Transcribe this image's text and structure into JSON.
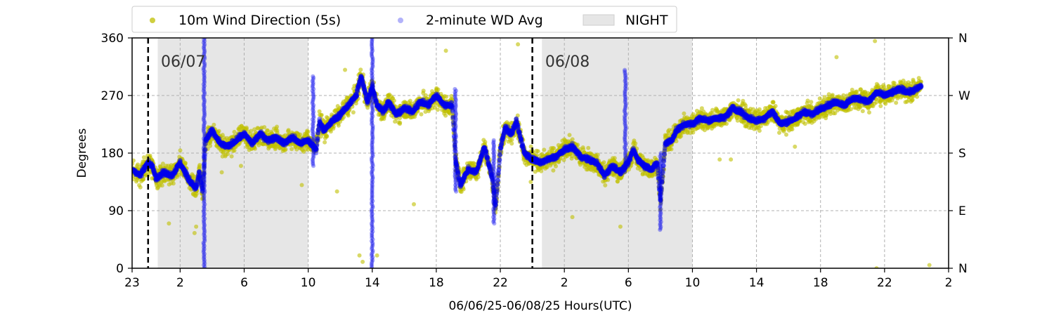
{
  "chart_data": {
    "type": "scatter",
    "xlabel": "06/06/25-06/08/25  Hours(UTC)",
    "ylabel": "Degrees",
    "ylim": [
      0,
      360
    ],
    "x_range_hours": [
      23,
      74
    ],
    "x_ticks": [
      {
        "hour": 23,
        "label": "23"
      },
      {
        "hour": 26,
        "label": "2"
      },
      {
        "hour": 30,
        "label": "6"
      },
      {
        "hour": 34,
        "label": "10"
      },
      {
        "hour": 38,
        "label": "14"
      },
      {
        "hour": 42,
        "label": "18"
      },
      {
        "hour": 46,
        "label": "22"
      },
      {
        "hour": 50,
        "label": "2"
      },
      {
        "hour": 54,
        "label": "6"
      },
      {
        "hour": 58,
        "label": "10"
      },
      {
        "hour": 62,
        "label": "14"
      },
      {
        "hour": 66,
        "label": "18"
      },
      {
        "hour": 70,
        "label": "22"
      },
      {
        "hour": 74,
        "label": "2"
      }
    ],
    "y_ticks": [
      0,
      90,
      180,
      270,
      360
    ],
    "y2_ticks": [
      {
        "value": 0,
        "label": "N"
      },
      {
        "value": 90,
        "label": "E"
      },
      {
        "value": 180,
        "label": "S"
      },
      {
        "value": 270,
        "label": "W"
      },
      {
        "value": 360,
        "label": "N"
      }
    ],
    "grid": true,
    "legend_position": "top-center",
    "night_periods": [
      [
        24.6,
        34.0
      ],
      [
        48.6,
        58.0
      ]
    ],
    "midnight_lines": [
      24.0,
      48.0
    ],
    "date_labels": [
      {
        "hour": 24.8,
        "label": "06/07"
      },
      {
        "hour": 48.8,
        "label": "06/08"
      }
    ],
    "legend": {
      "wd5s": "10m Wind Direction (5s)",
      "wd2m": "2-minute WD Avg",
      "night": "NIGHT"
    },
    "series": [
      {
        "name": "10m Wind Direction (5s)",
        "color": "#bfbf00",
        "spread": 22,
        "outliers": [
          [
            27.0,
            65
          ],
          [
            26.9,
            55
          ],
          [
            25.3,
            70
          ],
          [
            33.6,
            130
          ],
          [
            28.6,
            150
          ],
          [
            35.8,
            120
          ],
          [
            37.2,
            20
          ],
          [
            37.4,
            10
          ],
          [
            38.3,
            20
          ],
          [
            40.6,
            100
          ],
          [
            42.6,
            340
          ],
          [
            47.1,
            350
          ],
          [
            50.5,
            80
          ],
          [
            53.5,
            65
          ],
          [
            59.7,
            170
          ],
          [
            60.4,
            170
          ],
          [
            64.4,
            190
          ],
          [
            67.0,
            330
          ],
          [
            69.4,
            355
          ],
          [
            69.5,
            0
          ],
          [
            72.8,
            5
          ],
          [
            29.8,
            160
          ],
          [
            36.3,
            310
          ],
          [
            47.9,
            135
          ]
        ]
      },
      {
        "name": "2-minute WD Avg",
        "color": "#0000ee",
        "profile": [
          [
            23.0,
            155
          ],
          [
            23.5,
            145
          ],
          [
            24.0,
            165
          ],
          [
            24.3,
            160
          ],
          [
            24.5,
            140
          ],
          [
            25.0,
            150
          ],
          [
            25.5,
            145
          ],
          [
            26.0,
            165
          ],
          [
            26.5,
            140
          ],
          [
            27.0,
            125
          ],
          [
            27.2,
            150
          ],
          [
            27.4,
            120
          ],
          [
            27.6,
            200
          ],
          [
            28.0,
            215
          ],
          [
            28.5,
            195
          ],
          [
            29.0,
            190
          ],
          [
            29.5,
            200
          ],
          [
            30.0,
            210
          ],
          [
            30.5,
            195
          ],
          [
            31.0,
            210
          ],
          [
            31.5,
            200
          ],
          [
            32.0,
            205
          ],
          [
            32.5,
            195
          ],
          [
            33.0,
            205
          ],
          [
            33.5,
            195
          ],
          [
            34.0,
            200
          ],
          [
            34.5,
            185
          ],
          [
            34.7,
            230
          ],
          [
            35.0,
            215
          ],
          [
            35.5,
            230
          ],
          [
            36.0,
            240
          ],
          [
            36.5,
            255
          ],
          [
            37.0,
            270
          ],
          [
            37.3,
            300
          ],
          [
            37.7,
            260
          ],
          [
            38.0,
            285
          ],
          [
            38.3,
            255
          ],
          [
            38.7,
            245
          ],
          [
            39.0,
            260
          ],
          [
            39.5,
            240
          ],
          [
            40.0,
            250
          ],
          [
            40.5,
            245
          ],
          [
            41.0,
            260
          ],
          [
            41.5,
            255
          ],
          [
            42.0,
            270
          ],
          [
            42.5,
            255
          ],
          [
            43.0,
            255
          ],
          [
            43.2,
            170
          ],
          [
            43.5,
            130
          ],
          [
            44.0,
            155
          ],
          [
            44.5,
            150
          ],
          [
            45.0,
            190
          ],
          [
            45.5,
            140
          ],
          [
            45.7,
            95
          ],
          [
            46.0,
            185
          ],
          [
            46.3,
            220
          ],
          [
            46.7,
            210
          ],
          [
            47.0,
            230
          ],
          [
            47.3,
            200
          ],
          [
            47.5,
            180
          ],
          [
            48.0,
            170
          ],
          [
            48.5,
            165
          ],
          [
            49.0,
            170
          ],
          [
            49.5,
            175
          ],
          [
            50.0,
            185
          ],
          [
            50.5,
            190
          ],
          [
            51.0,
            175
          ],
          [
            51.5,
            170
          ],
          [
            52.0,
            165
          ],
          [
            52.5,
            145
          ],
          [
            53.0,
            160
          ],
          [
            53.5,
            150
          ],
          [
            54.0,
            165
          ],
          [
            54.3,
            185
          ],
          [
            54.6,
            170
          ],
          [
            55.0,
            160
          ],
          [
            55.5,
            155
          ],
          [
            55.8,
            165
          ],
          [
            56.0,
            105
          ],
          [
            56.3,
            195
          ],
          [
            56.7,
            200
          ],
          [
            57.0,
            215
          ],
          [
            57.5,
            225
          ],
          [
            58.0,
            225
          ],
          [
            58.5,
            235
          ],
          [
            59.0,
            230
          ],
          [
            59.5,
            235
          ],
          [
            60.0,
            235
          ],
          [
            60.5,
            250
          ],
          [
            61.0,
            245
          ],
          [
            61.5,
            235
          ],
          [
            62.0,
            230
          ],
          [
            62.5,
            235
          ],
          [
            63.0,
            245
          ],
          [
            63.5,
            225
          ],
          [
            64.0,
            230
          ],
          [
            64.5,
            235
          ],
          [
            65.0,
            245
          ],
          [
            65.5,
            240
          ],
          [
            66.0,
            250
          ],
          [
            66.5,
            255
          ],
          [
            67.0,
            260
          ],
          [
            67.5,
            255
          ],
          [
            68.0,
            265
          ],
          [
            68.5,
            265
          ],
          [
            69.0,
            260
          ],
          [
            69.5,
            275
          ],
          [
            70.0,
            270
          ],
          [
            70.5,
            275
          ],
          [
            71.0,
            280
          ],
          [
            71.5,
            275
          ],
          [
            72.0,
            280
          ],
          [
            72.3,
            285
          ]
        ],
        "spikes": [
          {
            "hour": 27.5,
            "from": 0,
            "to": 360
          },
          {
            "hour": 34.3,
            "from": 160,
            "to": 300
          },
          {
            "hour": 38.0,
            "from": 0,
            "to": 360
          },
          {
            "hour": 43.2,
            "from": 120,
            "to": 280
          },
          {
            "hour": 45.6,
            "from": 70,
            "to": 200
          },
          {
            "hour": 53.8,
            "from": 150,
            "to": 310
          },
          {
            "hour": 56.0,
            "from": 60,
            "to": 180
          }
        ]
      }
    ]
  }
}
